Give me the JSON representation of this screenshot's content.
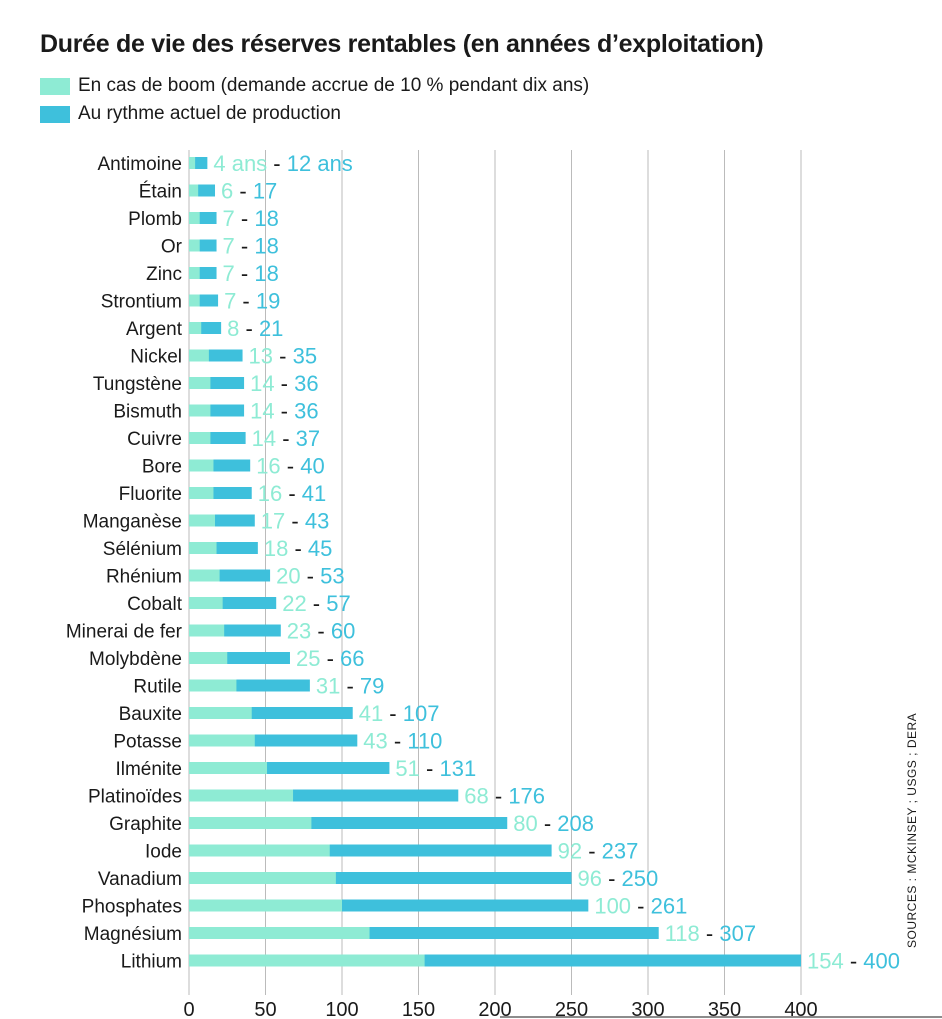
{
  "title": "Durée de vie des réserves rentables (en années d’exploitation)",
  "legend": {
    "boom": "En cas de boom (demande accrue de 10 % pendant dix ans)",
    "current": "Au rythme actuel de production"
  },
  "source": "SOURCES : MCKINSEY ; USGS ; DERA",
  "colors": {
    "boom": "#8EEBD4",
    "current": "#3EC0DC",
    "separator": "#1a1a1a",
    "grid": "#bbbbbb",
    "text": "#1a1a1a"
  },
  "chart_data": {
    "type": "bar",
    "orientation": "horizontal",
    "title": "Durée de vie des réserves rentables (en années d’exploitation)",
    "xlim": [
      0,
      400
    ],
    "xticks": [
      0,
      50,
      100,
      150,
      200,
      250,
      300,
      350,
      400
    ],
    "grid": true,
    "legend_position": "top-left",
    "first_label_suffix": " ans",
    "separator": "-",
    "categories": [
      "Antimoine",
      "Étain",
      "Plomb",
      "Or",
      "Zinc",
      "Strontium",
      "Argent",
      "Nickel",
      "Tungstène",
      "Bismuth",
      "Cuivre",
      "Bore",
      "Fluorite",
      "Manganèse",
      "Sélénium",
      "Rhénium",
      "Cobalt",
      "Minerai de fer",
      "Molybdène",
      "Rutile",
      "Bauxite",
      "Potasse",
      "Ilménite",
      "Platinoïdes",
      "Graphite",
      "Iode",
      "Vanadium",
      "Phosphates",
      "Magnésium",
      "Lithium"
    ],
    "series": [
      {
        "name": "En cas de boom (demande accrue de 10 % pendant dix ans)",
        "key": "boom",
        "values": [
          4,
          6,
          7,
          7,
          7,
          7,
          8,
          13,
          14,
          14,
          14,
          16,
          16,
          17,
          18,
          20,
          22,
          23,
          25,
          31,
          41,
          43,
          51,
          68,
          80,
          92,
          96,
          100,
          118,
          154
        ]
      },
      {
        "name": "Au rythme actuel de production",
        "key": "current",
        "values": [
          12,
          17,
          18,
          18,
          18,
          19,
          21,
          35,
          36,
          36,
          37,
          40,
          41,
          43,
          45,
          53,
          57,
          60,
          66,
          79,
          107,
          110,
          131,
          176,
          208,
          237,
          250,
          261,
          307,
          400
        ]
      }
    ]
  }
}
